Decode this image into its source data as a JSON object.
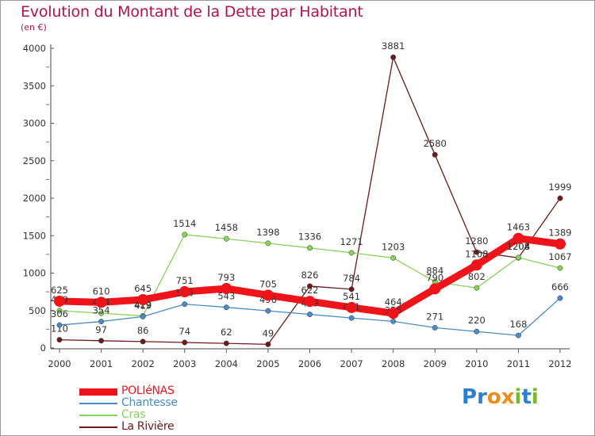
{
  "title": "Evolution du Montant de la Dette par Habitant",
  "subtitle": "(en €)",
  "brand": {
    "letters": [
      "P",
      "r",
      "o",
      "x",
      "i",
      "t",
      "i"
    ],
    "colors": [
      "#2a7fd4",
      "#2a7fd4",
      "#f08c1a",
      "#f08c1a",
      "#7ab82e",
      "#2a7fd4",
      "#7ab82e"
    ]
  },
  "chart_data": {
    "type": "line",
    "title": "Evolution du Montant de la Dette par Habitant",
    "ylabel": "(en €)",
    "xlabel": "",
    "x": [
      "2000",
      "2001",
      "2002",
      "2003",
      "2004",
      "2005",
      "2006",
      "2007",
      "2008",
      "2009",
      "2010",
      "2011",
      "2012"
    ],
    "ylim": [
      0,
      4000
    ],
    "yticks": [
      0,
      500,
      1000,
      1500,
      2000,
      2500,
      3000,
      3500,
      4000
    ],
    "grid": false,
    "legend_position": "bottom-left",
    "series": [
      {
        "name": "La Rivière",
        "color": "#6e1a1a",
        "width": 1.3,
        "values": [
          110,
          97,
          86,
          74,
          62,
          49,
          826,
          784,
          3881,
          2580,
          1280,
          1204,
          1999
        ]
      },
      {
        "name": "Cras",
        "color": "#88d45a",
        "width": 1.3,
        "values": [
          499,
          464,
          429,
          1514,
          1458,
          1398,
          1336,
          1271,
          1203,
          884,
          802,
          1208,
          1067
        ]
      },
      {
        "name": "Chantesse",
        "color": "#4a8cc7",
        "width": 1.3,
        "values": [
          306,
          354,
          419,
          586,
          543,
          496,
          449,
          401,
          356,
          271,
          220,
          168,
          666
        ]
      },
      {
        "name": "POLIéNAS",
        "color": "#f0131a",
        "width": 9,
        "values": [
          625,
          610,
          645,
          751,
          793,
          705,
          622,
          541,
          464,
          790,
          1108,
          1463,
          1389
        ]
      }
    ],
    "legend_order": [
      "POLIéNAS",
      "Chantesse",
      "Cras",
      "La Rivière"
    ]
  }
}
